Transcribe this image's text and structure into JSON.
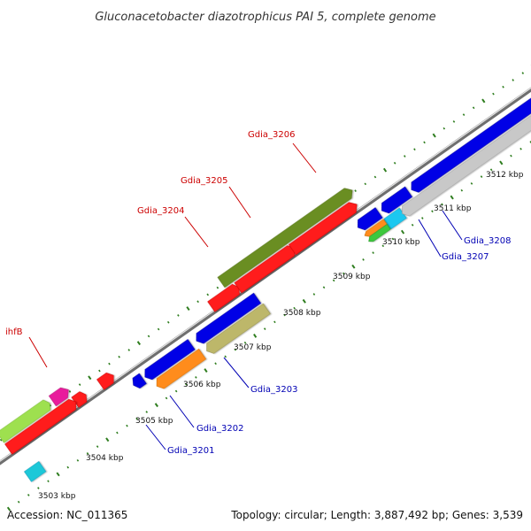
{
  "title": "Gluconacetobacter diazotrophicus PAI 5, complete genome",
  "footer": {
    "accession": "Accession: NC_011365",
    "summary": "Topology: circular; Length: 3,887,492 bp; Genes: 3,539"
  },
  "colors": {
    "backbone": "#8c8c8c",
    "tick": "#2e7d1e",
    "label_forward": "#cc0000",
    "label_reverse": "#0000b4",
    "leader_forward": "#cc0000",
    "leader_reverse": "#0000b4"
  },
  "chart_data": {
    "type": "genome-map",
    "unit": "kbp",
    "ticks": [
      "3503 kbp",
      "3504 kbp",
      "3505 kbp",
      "3506 kbp",
      "3507 kbp",
      "3508 kbp",
      "3509 kbp",
      "3510 kbp",
      "3511 kbp",
      "3512 kbp"
    ],
    "genes_labeled": [
      {
        "name": "ihfB",
        "strand": "forward"
      },
      {
        "name": "Gdia_3204",
        "strand": "forward"
      },
      {
        "name": "Gdia_3205",
        "strand": "forward"
      },
      {
        "name": "Gdia_3206",
        "strand": "forward"
      },
      {
        "name": "Gdia_3201",
        "strand": "reverse"
      },
      {
        "name": "Gdia_3202",
        "strand": "reverse"
      },
      {
        "name": "Gdia_3203",
        "strand": "reverse"
      },
      {
        "name": "Gdia_3207",
        "strand": "reverse"
      },
      {
        "name": "Gdia_3208",
        "strand": "reverse"
      }
    ]
  }
}
